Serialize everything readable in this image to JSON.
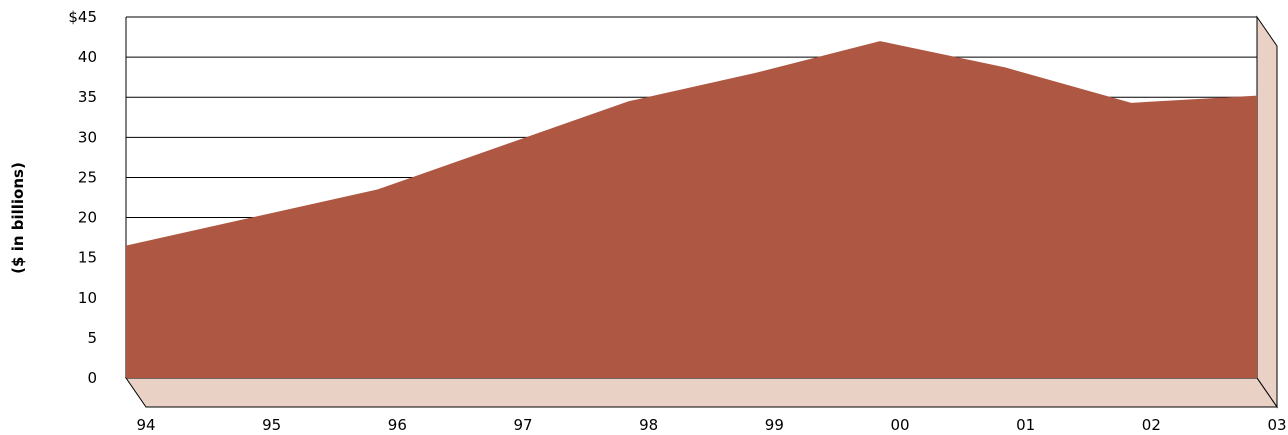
{
  "chart_data": {
    "type": "area",
    "title": "",
    "xlabel": "",
    "ylabel": "($ in billions)",
    "categories": [
      "94",
      "95",
      "96",
      "97",
      "98",
      "99",
      "00",
      "01",
      "02",
      "03"
    ],
    "y_tick_labels": [
      "0",
      "5",
      "10",
      "15",
      "20",
      "25",
      "30",
      "35",
      "40",
      "$45"
    ],
    "y_ticks": [
      0,
      5,
      10,
      15,
      20,
      25,
      30,
      35,
      40,
      45
    ],
    "ylim": [
      0,
      45
    ],
    "grid": true,
    "three_d": true,
    "series": [
      {
        "values": [
          16.5,
          20,
          23.5,
          29,
          34.5,
          38,
          42,
          38.7,
          34.3,
          35.2
        ]
      }
    ],
    "colors": {
      "area": "#ae5742",
      "floor": "#e9d1c5",
      "grid": "#000000"
    }
  }
}
